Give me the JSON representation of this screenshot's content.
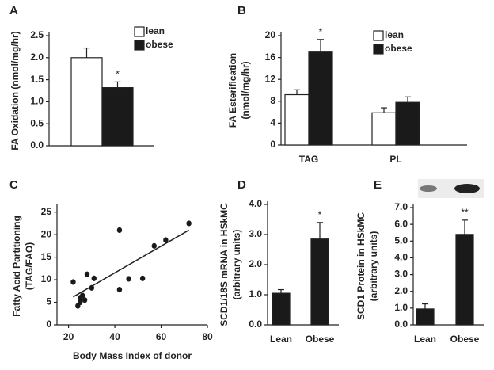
{
  "chart_data": [
    {
      "type": "bar",
      "panel": "A",
      "y_label": "FA Oxidation (nmol/mg/hr)",
      "categories": [
        null
      ],
      "series": [
        {
          "name": "lean",
          "color": "#ffffff",
          "values": [
            2.0
          ],
          "errors": [
            0.22
          ]
        },
        {
          "name": "obese",
          "color": "#1a1a1a",
          "values": [
            1.32
          ],
          "errors": [
            0.13
          ]
        }
      ],
      "annotation": "*",
      "ylim": [
        0,
        2.5
      ],
      "yticks": [
        {
          "value": 0,
          "label": "0.0"
        },
        0.5,
        {
          "value": 1,
          "label": "1.0"
        },
        1.5,
        {
          "value": 2,
          "label": "2.0"
        },
        2.5
      ]
    },
    {
      "type": "bar",
      "panel": "B",
      "y_label": [
        "FA Esterification",
        "(nmol/mg/hr)"
      ],
      "categories": [
        "TAG",
        "PL"
      ],
      "series": [
        {
          "name": "lean",
          "color": "#ffffff",
          "values": [
            9.2,
            5.9
          ],
          "errors": [
            0.9,
            0.9
          ]
        },
        {
          "name": "obese",
          "color": "#1a1a1a",
          "values": [
            17.0,
            7.8
          ],
          "errors": [
            2.3,
            1.0
          ]
        }
      ],
      "annotation": "*",
      "ylim": [
        0,
        20
      ],
      "yticks": [
        0,
        4,
        8,
        12,
        16,
        20
      ]
    },
    {
      "type": "scatter",
      "panel": "C",
      "y_label": [
        "Fatty Acid Partitioning",
        "(TAG/FAO)"
      ],
      "x_label": "Body Mass Index of donor",
      "x": [
        22,
        24,
        25,
        25,
        26,
        27,
        28,
        30,
        31,
        42,
        42,
        46,
        52,
        57,
        62,
        72
      ],
      "values": [
        9.5,
        4.2,
        6.0,
        5.0,
        6.5,
        5.5,
        11.2,
        8.2,
        10.3,
        7.8,
        21.0,
        10.2,
        10.3,
        17.5,
        18.8,
        22.5
      ],
      "color": "#1a1a1a",
      "trendline": {
        "x": [
          22,
          72
        ],
        "values": [
          6.2,
          21.0
        ]
      },
      "xlim": [
        15,
        80
      ],
      "xticks": [
        20,
        40,
        60,
        80
      ],
      "ylim": [
        0,
        26
      ],
      "yticks": [
        0,
        5,
        10,
        15,
        20,
        25
      ]
    },
    {
      "type": "bar",
      "panel": "D",
      "y_label": [
        "SCD1/18S mRNA in HSkMC",
        "(arbitrary units)"
      ],
      "categories": [
        "Lean",
        "Obese"
      ],
      "series": [
        {
          "color": "#1a1a1a",
          "values": [
            1.05,
            2.85
          ],
          "errors": [
            0.12,
            0.55
          ]
        }
      ],
      "annotation": "*",
      "ylim": [
        0,
        4
      ],
      "yticks": [
        {
          "value": 0,
          "label": "0.0"
        },
        {
          "value": 1,
          "label": "1.0"
        },
        {
          "value": 2,
          "label": "2.0"
        },
        {
          "value": 3,
          "label": "3.0"
        },
        {
          "value": 4,
          "label": "4.0"
        }
      ]
    },
    {
      "type": "bar",
      "panel": "E",
      "y_label": [
        "SCD1 Protein in HSkMC",
        "(arbitrary units)"
      ],
      "categories": [
        "Lean",
        "Obese"
      ],
      "series": [
        {
          "color": "#1a1a1a",
          "values": [
            0.95,
            5.4
          ],
          "errors": [
            0.3,
            0.85
          ]
        }
      ],
      "annotation": "**",
      "ylim": [
        0,
        7
      ],
      "yticks": [
        {
          "value": 0,
          "label": "0.0"
        },
        {
          "value": 1,
          "label": "1.0"
        },
        {
          "value": 2,
          "label": "2.0"
        },
        {
          "value": 3,
          "label": "3.0"
        },
        {
          "value": 4,
          "label": "4.0"
        },
        {
          "value": 5,
          "label": "5.0"
        },
        {
          "value": 6,
          "label": "6.0"
        },
        {
          "value": 7,
          "label": "7.0"
        }
      ]
    }
  ]
}
